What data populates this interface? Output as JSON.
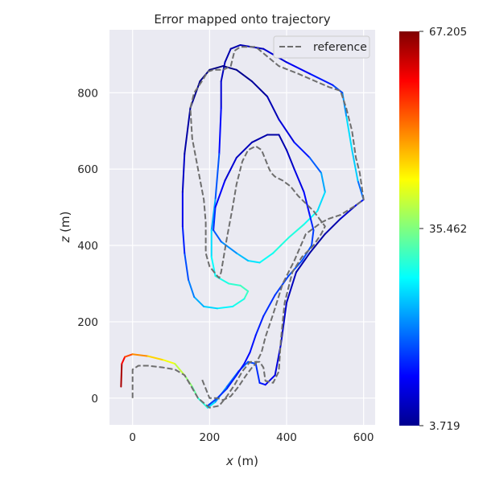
{
  "chart_data": {
    "type": "line",
    "title": "Error mapped onto trajectory",
    "xlabel_var": "x",
    "xlabel_unit": " (m)",
    "ylabel_var": "z",
    "ylabel_unit": " (m)",
    "xlim": [
      -60,
      630
    ],
    "ylim": [
      -70,
      965
    ],
    "x_ticks": [
      0,
      200,
      400,
      600
    ],
    "y_ticks": [
      0,
      200,
      400,
      600,
      800
    ],
    "grid": true,
    "legend_position": "top-right",
    "legend": [
      {
        "label": "reference",
        "style": "dashed",
        "color": "#6e6e6e"
      }
    ],
    "colorbar": {
      "min": 3.719,
      "max": 67.205,
      "tick_labels": [
        "67.205",
        "35.462",
        "3.719"
      ],
      "tick_values": [
        67.205,
        35.462,
        3.719
      ],
      "colormap": "jet"
    },
    "series": [
      {
        "name": "reference",
        "style": "dashed",
        "points": [
          [
            0,
            0
          ],
          [
            0,
            75
          ],
          [
            15,
            85
          ],
          [
            40,
            85
          ],
          [
            80,
            80
          ],
          [
            110,
            75
          ],
          [
            135,
            60
          ],
          [
            150,
            35
          ],
          [
            170,
            0
          ],
          [
            200,
            -25
          ],
          [
            225,
            -20
          ],
          [
            245,
            5
          ],
          [
            265,
            35
          ],
          [
            285,
            70
          ],
          [
            305,
            95
          ],
          [
            330,
            95
          ],
          [
            340,
            80
          ],
          [
            345,
            45
          ],
          [
            365,
            40
          ],
          [
            380,
            70
          ],
          [
            385,
            150
          ],
          [
            395,
            250
          ],
          [
            415,
            330
          ],
          [
            440,
            370
          ],
          [
            470,
            400
          ],
          [
            490,
            430
          ],
          [
            500,
            450
          ],
          [
            470,
            490
          ],
          [
            430,
            530
          ],
          [
            410,
            555
          ],
          [
            390,
            570
          ],
          [
            370,
            580
          ],
          [
            360,
            590
          ],
          [
            355,
            600
          ],
          [
            345,
            625
          ],
          [
            335,
            650
          ],
          [
            320,
            660
          ],
          [
            300,
            650
          ],
          [
            285,
            620
          ],
          [
            270,
            560
          ],
          [
            260,
            500
          ],
          [
            245,
            420
          ],
          [
            230,
            330
          ],
          [
            225,
            315
          ],
          [
            220,
            320
          ],
          [
            200,
            345
          ],
          [
            190,
            380
          ],
          [
            190,
            420
          ],
          [
            190,
            460
          ],
          [
            185,
            520
          ],
          [
            170,
            600
          ],
          [
            155,
            680
          ],
          [
            150,
            760
          ],
          [
            160,
            800
          ],
          [
            180,
            830
          ],
          [
            195,
            855
          ],
          [
            210,
            860
          ],
          [
            235,
            860
          ],
          [
            255,
            870
          ],
          [
            265,
            910
          ],
          [
            280,
            920
          ],
          [
            320,
            920
          ],
          [
            380,
            870
          ],
          [
            430,
            850
          ],
          [
            510,
            815
          ],
          [
            540,
            805
          ],
          [
            555,
            760
          ],
          [
            570,
            700
          ],
          [
            580,
            630
          ],
          [
            590,
            590
          ],
          [
            600,
            520
          ],
          [
            580,
            505
          ],
          [
            540,
            480
          ],
          [
            510,
            470
          ],
          [
            490,
            460
          ],
          [
            450,
            430
          ],
          [
            420,
            360
          ],
          [
            390,
            300
          ],
          [
            365,
            220
          ],
          [
            345,
            160
          ],
          [
            335,
            120
          ],
          [
            325,
            100
          ],
          [
            320,
            90
          ],
          [
            310,
            80
          ],
          [
            295,
            60
          ],
          [
            275,
            30
          ],
          [
            255,
            5
          ],
          [
            235,
            -5
          ],
          [
            220,
            0
          ],
          [
            200,
            0
          ],
          [
            180,
            50
          ]
        ]
      },
      {
        "name": "",
        "style": "colormap",
        "points_error": [
          [
            -30,
            30,
            67.2
          ],
          [
            -28,
            90,
            62
          ],
          [
            -20,
            108,
            57
          ],
          [
            0,
            115,
            53
          ],
          [
            40,
            110,
            48
          ],
          [
            80,
            100,
            44
          ],
          [
            110,
            90,
            41
          ],
          [
            135,
            60,
            38
          ],
          [
            155,
            30,
            35
          ],
          [
            170,
            0,
            32
          ],
          [
            195,
            -25,
            28
          ],
          [
            215,
            -10,
            24
          ],
          [
            245,
            30,
            20
          ],
          [
            275,
            70,
            18
          ],
          [
            300,
            95,
            17
          ],
          [
            320,
            90,
            15
          ],
          [
            330,
            40,
            14
          ],
          [
            345,
            35,
            12
          ],
          [
            370,
            60,
            10
          ],
          [
            385,
            140,
            9
          ],
          [
            400,
            250,
            8
          ],
          [
            425,
            330,
            7
          ],
          [
            460,
            380,
            6
          ],
          [
            500,
            430,
            6
          ],
          [
            540,
            470,
            7
          ],
          [
            580,
            505,
            10
          ],
          [
            600,
            520,
            15
          ],
          [
            585,
            570,
            22
          ],
          [
            570,
            650,
            27
          ],
          [
            555,
            740,
            24
          ],
          [
            545,
            800,
            18
          ],
          [
            520,
            820,
            14
          ],
          [
            460,
            850,
            12
          ],
          [
            400,
            880,
            10
          ],
          [
            340,
            915,
            8
          ],
          [
            280,
            925,
            7
          ],
          [
            255,
            915,
            6
          ],
          [
            240,
            880,
            7
          ],
          [
            230,
            830,
            8
          ],
          [
            230,
            760,
            10
          ],
          [
            225,
            640,
            14
          ],
          [
            215,
            520,
            20
          ],
          [
            205,
            440,
            24
          ],
          [
            205,
            370,
            27
          ],
          [
            215,
            320,
            28
          ],
          [
            250,
            300,
            30
          ],
          [
            280,
            295,
            31
          ],
          [
            300,
            280,
            32
          ],
          [
            290,
            260,
            30
          ],
          [
            260,
            240,
            28
          ],
          [
            220,
            235,
            26
          ],
          [
            185,
            240,
            24
          ],
          [
            160,
            265,
            21
          ],
          [
            145,
            310,
            18
          ],
          [
            135,
            380,
            15
          ],
          [
            130,
            450,
            12
          ],
          [
            130,
            540,
            9
          ],
          [
            135,
            640,
            7
          ],
          [
            150,
            760,
            5
          ],
          [
            175,
            830,
            4.5
          ],
          [
            200,
            860,
            4
          ],
          [
            235,
            870,
            4
          ],
          [
            270,
            860,
            4.5
          ],
          [
            310,
            830,
            5
          ],
          [
            350,
            790,
            6
          ],
          [
            380,
            730,
            8
          ],
          [
            420,
            670,
            11
          ],
          [
            460,
            630,
            15
          ],
          [
            490,
            590,
            20
          ],
          [
            500,
            540,
            24
          ],
          [
            480,
            490,
            27
          ],
          [
            445,
            455,
            29
          ],
          [
            405,
            420,
            30
          ],
          [
            365,
            380,
            29
          ],
          [
            330,
            355,
            27
          ],
          [
            300,
            360,
            25
          ],
          [
            270,
            380,
            22
          ],
          [
            230,
            410,
            19
          ],
          [
            210,
            440,
            16
          ],
          [
            215,
            500,
            13
          ],
          [
            240,
            570,
            10
          ],
          [
            270,
            630,
            8
          ],
          [
            310,
            670,
            7
          ],
          [
            350,
            690,
            6
          ],
          [
            380,
            690,
            6
          ],
          [
            400,
            650,
            7
          ],
          [
            420,
            600,
            9
          ],
          [
            445,
            540,
            11
          ],
          [
            460,
            480,
            13
          ],
          [
            470,
            440,
            15
          ],
          [
            465,
            400,
            16
          ],
          [
            440,
            360,
            17
          ],
          [
            405,
            320,
            16
          ],
          [
            370,
            270,
            15
          ],
          [
            340,
            215,
            14
          ],
          [
            320,
            165,
            13
          ],
          [
            305,
            120,
            12
          ],
          [
            290,
            90,
            12
          ],
          [
            270,
            60,
            13
          ],
          [
            245,
            25,
            14
          ],
          [
            220,
            0,
            15
          ],
          [
            195,
            -20,
            16
          ]
        ]
      }
    ]
  }
}
